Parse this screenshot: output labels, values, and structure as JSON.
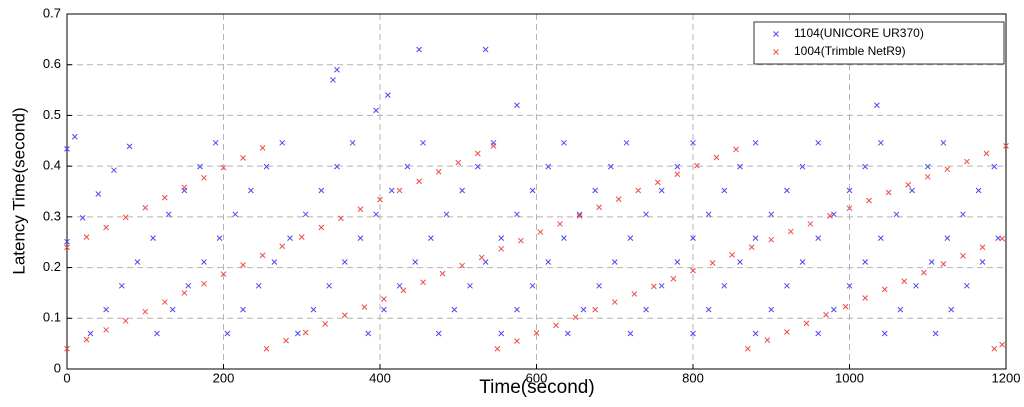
{
  "chart_data": {
    "type": "scatter",
    "xlabel": "Time(second)",
    "ylabel": "Latency Time(second)",
    "xlim": [
      0,
      1200
    ],
    "ylim": [
      0,
      0.7
    ],
    "xticks": [
      0,
      200,
      400,
      600,
      800,
      1000,
      1200
    ],
    "yticks": [
      0,
      0.1,
      0.2,
      0.3,
      0.4,
      0.5,
      0.6,
      0.7
    ],
    "grid": true,
    "legend": "upper right",
    "series": [
      {
        "name": "1104(UNICORE UR370)",
        "color": "#4a4af0",
        "x": [
          0,
          10,
          0,
          20,
          40,
          60,
          80,
          30,
          50,
          70,
          90,
          110,
          130,
          150,
          170,
          190,
          115,
          135,
          155,
          175,
          195,
          215,
          235,
          255,
          275,
          205,
          225,
          245,
          265,
          285,
          305,
          325,
          345,
          365,
          295,
          315,
          335,
          355,
          375,
          395,
          415,
          435,
          455,
          385,
          405,
          425,
          445,
          465,
          485,
          505,
          525,
          545,
          475,
          495,
          515,
          535,
          555,
          575,
          595,
          615,
          635,
          555,
          575,
          595,
          615,
          635,
          655,
          675,
          695,
          715,
          640,
          660,
          680,
          700,
          720,
          740,
          760,
          780,
          800,
          720,
          740,
          760,
          780,
          800,
          820,
          840,
          860,
          880,
          800,
          820,
          840,
          860,
          880,
          900,
          920,
          940,
          960,
          880,
          900,
          920,
          940,
          960,
          980,
          1000,
          1020,
          1040,
          960,
          980,
          1000,
          1020,
          1040,
          1060,
          1080,
          1100,
          1120,
          1045,
          1065,
          1085,
          1105,
          1125,
          1145,
          1165,
          1185,
          1110,
          1130,
          1150,
          1170,
          1190,
          340,
          345,
          395,
          410,
          450,
          535,
          575,
          1035
        ],
        "values": [
          0.434,
          0.458,
          0.251,
          0.298,
          0.345,
          0.392,
          0.439,
          0.07,
          0.117,
          0.164,
          0.211,
          0.258,
          0.305,
          0.352,
          0.399,
          0.446,
          0.07,
          0.117,
          0.164,
          0.211,
          0.258,
          0.305,
          0.352,
          0.399,
          0.446,
          0.07,
          0.117,
          0.164,
          0.211,
          0.258,
          0.305,
          0.352,
          0.399,
          0.446,
          0.07,
          0.117,
          0.164,
          0.211,
          0.258,
          0.305,
          0.352,
          0.399,
          0.446,
          0.07,
          0.117,
          0.164,
          0.211,
          0.258,
          0.305,
          0.352,
          0.399,
          0.446,
          0.07,
          0.117,
          0.164,
          0.211,
          0.258,
          0.305,
          0.352,
          0.399,
          0.446,
          0.07,
          0.117,
          0.164,
          0.211,
          0.258,
          0.305,
          0.352,
          0.399,
          0.446,
          0.07,
          0.117,
          0.164,
          0.211,
          0.258,
          0.305,
          0.352,
          0.399,
          0.446,
          0.07,
          0.117,
          0.164,
          0.211,
          0.258,
          0.305,
          0.352,
          0.399,
          0.446,
          0.07,
          0.117,
          0.164,
          0.211,
          0.258,
          0.305,
          0.352,
          0.399,
          0.446,
          0.07,
          0.117,
          0.164,
          0.211,
          0.258,
          0.305,
          0.352,
          0.399,
          0.446,
          0.07,
          0.117,
          0.164,
          0.211,
          0.258,
          0.305,
          0.352,
          0.399,
          0.446,
          0.07,
          0.117,
          0.164,
          0.211,
          0.258,
          0.305,
          0.352,
          0.399,
          0.07,
          0.117,
          0.164,
          0.211,
          0.258,
          0.57,
          0.59,
          0.51,
          0.54,
          0.63,
          0.63,
          0.52,
          0.52
        ]
      },
      {
        "name": "1004(Trimble NetR9)",
        "color": "#f04a4a",
        "x": [
          0,
          25,
          50,
          75,
          100,
          125,
          150,
          175,
          200,
          225,
          250,
          0,
          25,
          50,
          75,
          100,
          125,
          150,
          175,
          200,
          225,
          250,
          275,
          300,
          325,
          350,
          375,
          400,
          425,
          450,
          475,
          500,
          525,
          545,
          255,
          280,
          305,
          330,
          355,
          380,
          405,
          430,
          455,
          480,
          505,
          530,
          555,
          580,
          605,
          630,
          655,
          680,
          705,
          730,
          755,
          780,
          805,
          830,
          855,
          550,
          575,
          600,
          625,
          650,
          675,
          700,
          725,
          750,
          775,
          800,
          825,
          850,
          875,
          900,
          925,
          950,
          975,
          1000,
          1025,
          1050,
          1075,
          1100,
          1125,
          1150,
          1175,
          1200,
          870,
          895,
          920,
          945,
          970,
          995,
          1020,
          1045,
          1070,
          1095,
          1120,
          1145,
          1170,
          1195,
          1185,
          1195
        ],
        "values": [
          0.24,
          0.26,
          0.279,
          0.299,
          0.318,
          0.338,
          0.358,
          0.377,
          0.397,
          0.416,
          0.436,
          0.04,
          0.058,
          0.077,
          0.095,
          0.113,
          0.132,
          0.15,
          0.168,
          0.187,
          0.205,
          0.224,
          0.242,
          0.26,
          0.279,
          0.297,
          0.315,
          0.334,
          0.352,
          0.37,
          0.389,
          0.407,
          0.425,
          0.44,
          0.04,
          0.056,
          0.072,
          0.089,
          0.106,
          0.122,
          0.138,
          0.155,
          0.171,
          0.188,
          0.204,
          0.22,
          0.237,
          0.253,
          0.27,
          0.286,
          0.302,
          0.319,
          0.335,
          0.352,
          0.368,
          0.384,
          0.401,
          0.417,
          0.433,
          0.04,
          0.055,
          0.071,
          0.086,
          0.102,
          0.117,
          0.132,
          0.148,
          0.163,
          0.178,
          0.194,
          0.209,
          0.225,
          0.24,
          0.255,
          0.271,
          0.286,
          0.302,
          0.317,
          0.332,
          0.348,
          0.363,
          0.379,
          0.394,
          0.409,
          0.425,
          0.44,
          0.04,
          0.057,
          0.073,
          0.09,
          0.107,
          0.123,
          0.14,
          0.157,
          0.173,
          0.19,
          0.207,
          0.223,
          0.24,
          0.257,
          0.04,
          0.048
        ]
      }
    ]
  }
}
